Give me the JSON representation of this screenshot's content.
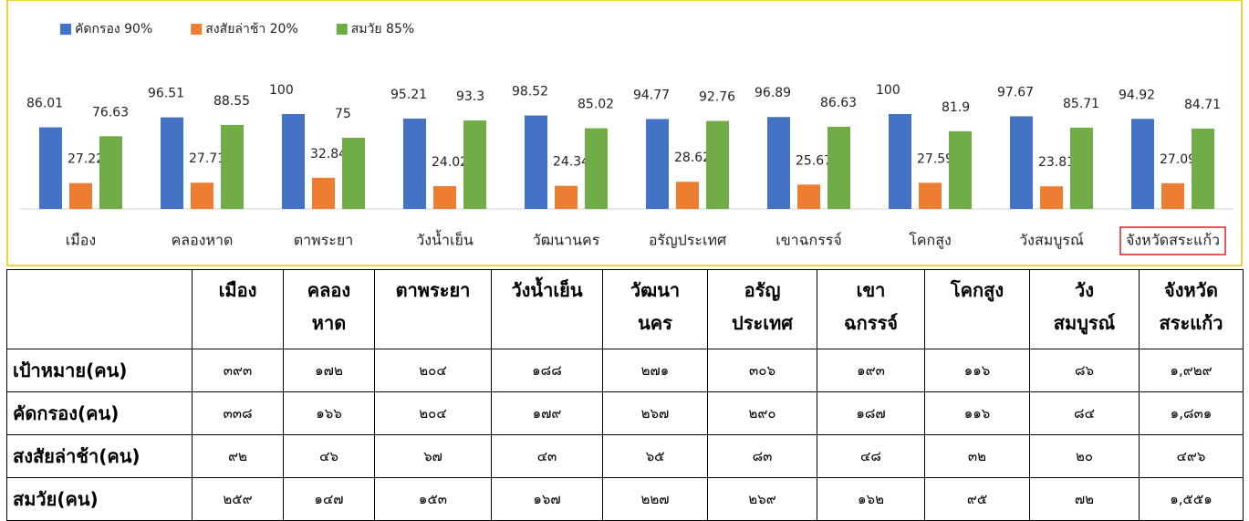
{
  "chart_data": {
    "type": "bar",
    "categories": [
      "เมือง",
      "คลองหาด",
      "ตาพระยา",
      "วังน้ำเย็น",
      "วัฒนานคร",
      "อรัญประเทศ",
      "เขาฉกรรจ์",
      "โคกสูง",
      "วังสมบูรณ์",
      "จังหวัดสระแก้ว"
    ],
    "series": [
      {
        "name": "คัดกรอง 90%",
        "color": "#4472c4",
        "values": [
          86.01,
          96.51,
          100,
          95.21,
          98.52,
          94.77,
          96.89,
          100,
          97.67,
          94.92
        ]
      },
      {
        "name": "สงสัยล่าช้า 20%",
        "color": "#ed7d31",
        "values": [
          27.22,
          27.71,
          32.84,
          24.02,
          24.34,
          28.62,
          25.67,
          27.59,
          23.81,
          27.09
        ]
      },
      {
        "name": "สมวัย 85%",
        "color": "#70ad47",
        "values": [
          76.63,
          88.55,
          75,
          93.3,
          85.02,
          92.76,
          86.63,
          81.9,
          85.71,
          84.71
        ]
      }
    ],
    "legend": "top-left",
    "highlight_category": 9
  },
  "table": {
    "header": [
      [
        "เมือง"
      ],
      [
        "คลอง",
        "หาด"
      ],
      [
        "ตาพระยา"
      ],
      [
        "วังน้ำเย็น"
      ],
      [
        "วัฒนา",
        "นคร"
      ],
      [
        "อรัญ",
        "ประเทศ"
      ],
      [
        "เขา",
        "ฉกรรจ์"
      ],
      [
        "โคกสูง"
      ],
      [
        "วัง",
        "สมบูรณ์"
      ],
      [
        "จังหวัด",
        "สระแก้ว"
      ]
    ],
    "rows": [
      {
        "label": "เป้าหมาย(คน)",
        "cells": [
          "๓๙๓",
          "๑๗๒",
          "๒๐๔",
          "๑๘๘",
          "๒๗๑",
          "๓๐๖",
          "๑๙๓",
          "๑๑๖",
          "๘๖",
          "๑,๙๒๙"
        ]
      },
      {
        "label": "คัดกรอง(คน)",
        "cells": [
          "๓๓๘",
          "๑๖๖",
          "๒๐๔",
          "๑๗๙",
          "๒๖๗",
          "๒๙๐",
          "๑๘๗",
          "๑๑๖",
          "๘๔",
          "๑,๘๓๑"
        ]
      },
      {
        "label": "สงสัยล่าช้า(คน)",
        "cells": [
          "๙๒",
          "๔๖",
          "๖๗",
          "๔๓",
          "๖๕",
          "๘๓",
          "๔๘",
          "๓๒",
          "๒๐",
          "๔๙๖"
        ]
      },
      {
        "label": "สมวัย(คน)",
        "cells": [
          "๒๕๙",
          "๑๔๗",
          "๑๕๓",
          "๑๖๗",
          "๒๒๗",
          "๒๖๙",
          "๑๖๒",
          "๙๕",
          "๗๒",
          "๑,๕๕๑"
        ]
      }
    ]
  }
}
